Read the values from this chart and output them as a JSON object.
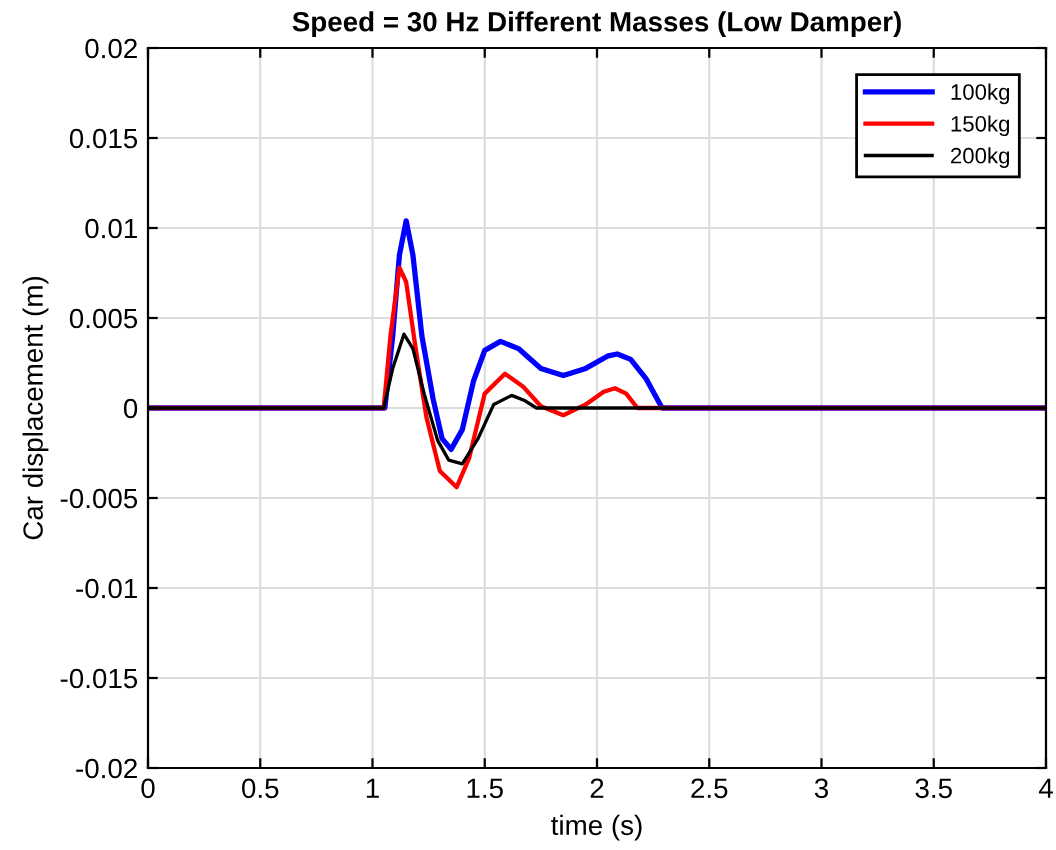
{
  "chart_data": {
    "type": "line",
    "title": "Speed = 30 Hz Different Masses (Low Damper)",
    "xlabel": "time (s)",
    "ylabel": "Car displacement (m)",
    "xlim": [
      0,
      4
    ],
    "xticks": [
      0,
      0.5,
      1,
      1.5,
      2,
      2.5,
      3,
      3.5,
      4
    ],
    "ylim": [
      -0.02,
      0.02
    ],
    "yticks": [
      -0.02,
      -0.015,
      -0.01,
      -0.005,
      0,
      0.005,
      0.01,
      0.015,
      0.02
    ],
    "grid": true,
    "legend": "top right",
    "series": [
      {
        "name": "100kg",
        "color": "#0000ff",
        "x": [
          0,
          1.055,
          1.09,
          1.12,
          1.15,
          1.18,
          1.22,
          1.27,
          1.31,
          1.35,
          1.4,
          1.45,
          1.5,
          1.57,
          1.65,
          1.75,
          1.85,
          1.95,
          2.05,
          2.09,
          2.15,
          2.22,
          2.29,
          4
        ],
        "values": [
          0,
          0,
          0.004,
          0.0085,
          0.0104,
          0.0085,
          0.004,
          0.0005,
          -0.0017,
          -0.0023,
          -0.0012,
          0.0015,
          0.0032,
          0.0037,
          0.0033,
          0.0022,
          0.0018,
          0.0022,
          0.0029,
          0.003,
          0.0027,
          0.0016,
          0,
          0
        ]
      },
      {
        "name": "150kg",
        "color": "#ff0000",
        "x": [
          0,
          1.05,
          1.08,
          1.12,
          1.15,
          1.19,
          1.24,
          1.3,
          1.375,
          1.43,
          1.5,
          1.59,
          1.67,
          1.75,
          1.85,
          1.95,
          2.03,
          2.08,
          2.13,
          2.18,
          4
        ],
        "values": [
          0,
          0,
          0.004,
          0.0078,
          0.007,
          0.0035,
          -0.0005,
          -0.0035,
          -0.0044,
          -0.0028,
          0.0008,
          0.0019,
          0.0012,
          0.0001,
          -0.0004,
          0.0002,
          0.0009,
          0.0011,
          0.0008,
          0,
          0
        ]
      },
      {
        "name": "200kg",
        "color": "#000000",
        "x": [
          0,
          1.05,
          1.09,
          1.14,
          1.18,
          1.23,
          1.29,
          1.34,
          1.4,
          1.47,
          1.54,
          1.62,
          1.68,
          1.73,
          4
        ],
        "values": [
          0,
          0,
          0.0022,
          0.0041,
          0.0033,
          0.0008,
          -0.0018,
          -0.0029,
          -0.0031,
          -0.0017,
          0.0002,
          0.0007,
          0.0004,
          0,
          0
        ]
      }
    ]
  }
}
